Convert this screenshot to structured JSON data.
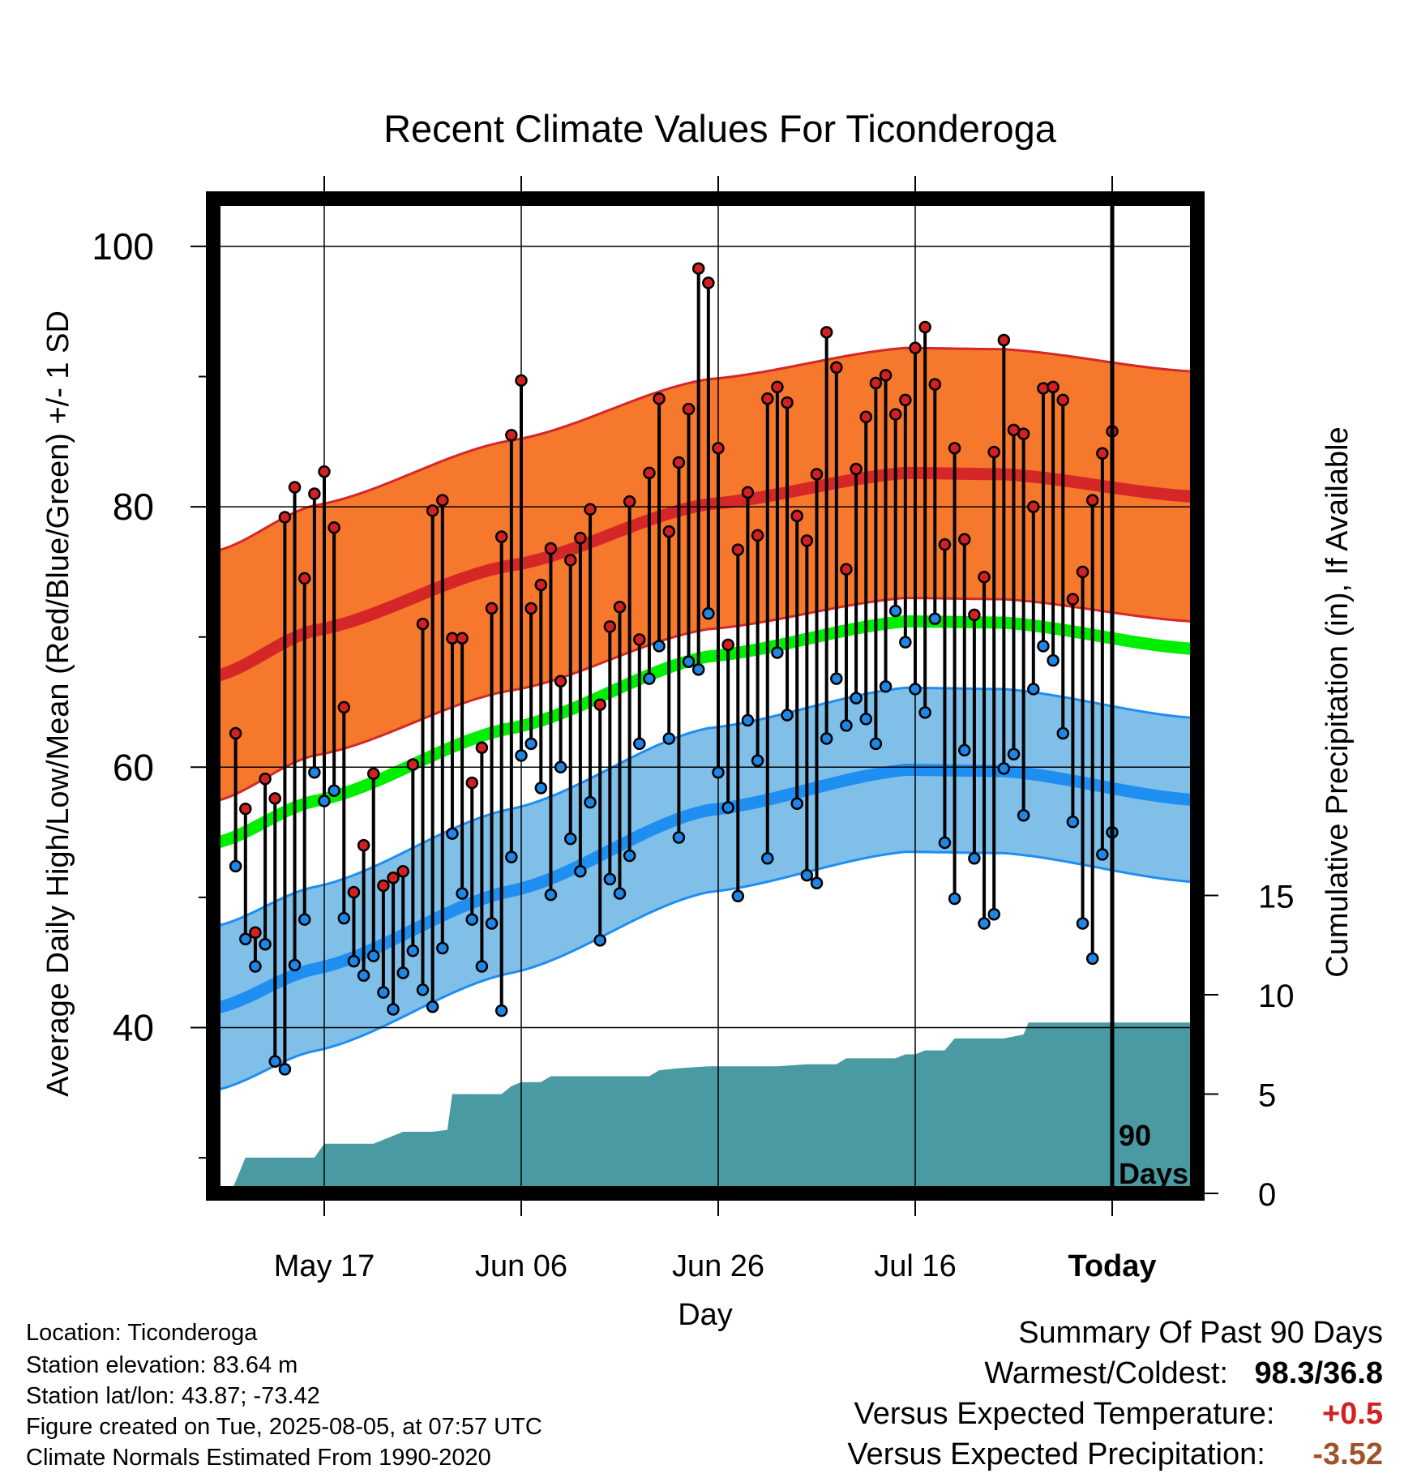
{
  "chart_data": {
    "type": "line",
    "title": "Recent Climate Values For Ticonderoga",
    "xlabel": "Day",
    "ylabel_left": "Average Daily High/Low/Mean (Red/Blue/Green) +/- 1 SD",
    "ylabel_right": "Cumulative Precipitation (in), If Available",
    "ylim_left": [
      27,
      103
    ],
    "yticks_left": [
      100,
      80,
      60,
      40
    ],
    "ylim_right": [
      0,
      20
    ],
    "yticks_right": [
      0,
      5,
      10,
      15
    ],
    "x_day_range": [
      -89,
      9
    ],
    "xticks": [
      {
        "day": -79,
        "label": "May 17"
      },
      {
        "day": -59,
        "label": "Jun 06"
      },
      {
        "day": -39,
        "label": "Jun 26"
      },
      {
        "day": -19,
        "label": "Jul 16"
      },
      {
        "day": 1,
        "label": "Today"
      }
    ],
    "today_marker_label": [
      "90",
      "Days"
    ],
    "grid": true,
    "colors": {
      "high_band": "#f5782d",
      "high_normal": "#d62728",
      "low_band": "#7fbfe8",
      "low_normal": "#1f8ef1",
      "mean_normal": "#00ee00",
      "precip_fill": "#4a9aa3",
      "high_point": "#d32020",
      "low_point": "#1f86e6",
      "warm_text": "#d32020",
      "dry_text": "#a0522d"
    },
    "normal_high": {
      "days": [
        -90,
        -80,
        -60,
        -40,
        -20,
        -10,
        9
      ],
      "mean": [
        67,
        70.5,
        75.5,
        80.2,
        82.6,
        82.5,
        80.8
      ],
      "sd": 9.6
    },
    "normal_low": {
      "days": [
        -90,
        -80,
        -60,
        -40,
        -20,
        -10,
        9
      ],
      "mean": [
        41.5,
        44.5,
        50.5,
        56.7,
        59.8,
        59.7,
        57.5
      ],
      "sd": 6.3
    },
    "normal_mean": {
      "days": [
        -90,
        -80,
        -60,
        -40,
        -20,
        -10,
        9
      ],
      "values": [
        54.2,
        57.4,
        63,
        68.5,
        71.2,
        71.1,
        69.1
      ]
    },
    "daily": {
      "start_day": -88,
      "high": [
        62.6,
        56.8,
        47.3,
        59.1,
        57.6,
        79.2,
        81.5,
        74.5,
        81,
        82.7,
        78.4,
        64.6,
        50.4,
        54,
        59.5,
        50.9,
        51.5,
        52,
        60.2,
        71,
        79.7,
        80.5,
        69.9,
        69.9,
        58.8,
        61.5,
        72.2,
        77.7,
        85.5,
        89.7,
        72.2,
        74,
        76.8,
        66.6,
        75.9,
        77.6,
        79.8,
        64.8,
        70.8,
        72.3,
        80.4,
        69.8,
        82.6,
        88.3,
        78.1,
        83.4,
        87.5,
        98.3,
        97.2,
        84.5,
        69.4,
        76.7,
        81.1,
        77.8,
        88.3,
        89.2,
        88,
        79.3,
        77.4,
        82.5,
        93.4,
        90.7,
        75.2,
        82.9,
        86.9,
        89.5,
        90.1,
        87.1,
        88.2,
        92.2,
        93.8,
        89.4,
        77.1,
        84.5,
        77.5,
        71.7,
        74.6,
        84.2,
        92.8,
        85.9,
        85.6,
        80,
        89.1,
        89.2,
        88.2,
        72.9,
        75,
        80.5,
        84.1,
        85.8
      ],
      "low": [
        52.4,
        46.8,
        44.7,
        46.4,
        37.4,
        36.8,
        44.8,
        48.3,
        59.6,
        57.4,
        58.2,
        48.4,
        45.1,
        44,
        45.5,
        42.7,
        41.4,
        44.2,
        45.9,
        42.9,
        41.6,
        46.1,
        54.9,
        50.3,
        48.3,
        44.7,
        48,
        41.3,
        53.1,
        60.9,
        61.8,
        58.4,
        50.2,
        60,
        54.5,
        52,
        57.3,
        46.7,
        51.4,
        50.3,
        53.2,
        61.8,
        66.8,
        69.3,
        62.2,
        54.6,
        68.1,
        67.5,
        71.8,
        59.6,
        56.9,
        50.1,
        63.6,
        60.5,
        53,
        68.8,
        64,
        57.2,
        51.7,
        51.1,
        62.2,
        66.8,
        63.2,
        65.3,
        63.7,
        61.8,
        66.2,
        72,
        69.6,
        66,
        64.2,
        71.4,
        54.2,
        49.9,
        61.3,
        53,
        48,
        48.7,
        59.9,
        61,
        56.3,
        66,
        69.3,
        68.2,
        62.6,
        55.8,
        48,
        45.3,
        53.3,
        55
      ]
    },
    "cumulative_precip": {
      "days": [
        -90,
        -88.5,
        -87,
        -84,
        -80,
        -79,
        -74,
        -72.5,
        -71,
        -68,
        -66.5,
        -66,
        -61,
        -60,
        -59,
        -57,
        -56,
        -53.5,
        -53,
        -46,
        -45,
        -43,
        -40,
        -36,
        -33,
        -30,
        -27,
        -26,
        -21,
        -20,
        -19,
        -18,
        -16,
        -15,
        -14,
        -10,
        -8,
        -7.5,
        -6,
        -5,
        9
      ],
      "values": [
        0,
        0,
        1.8,
        1.8,
        1.8,
        2.5,
        2.5,
        2.8,
        3.1,
        3.1,
        3.2,
        5,
        5,
        5.4,
        5.6,
        5.6,
        5.9,
        5.9,
        5.9,
        5.9,
        6.2,
        6.3,
        6.4,
        6.4,
        6.4,
        6.5,
        6.5,
        6.8,
        6.8,
        7,
        7.0,
        7.2,
        7.2,
        7.8,
        7.8,
        7.8,
        8,
        8.6,
        8.6,
        8.6,
        8.6
      ]
    }
  },
  "footer": {
    "location": "Location: Ticonderoga",
    "elevation": "Station elevation: 83.64 m",
    "latlon": "Station lat/lon: 43.87; -73.42",
    "created": "Figure created on Tue, 2025-08-05, at 07:57 UTC",
    "normals": "Climate Normals Estimated From 1990-2020"
  },
  "summary": {
    "title": "Summary Of Past 90 Days",
    "warmest_label": "Warmest/Coldest:",
    "warmest_value": "98.3/36.8",
    "temp_label": "Versus Expected Temperature:",
    "temp_value": "+0.5",
    "precip_label": "Versus Expected Precipitation:",
    "precip_value": "-3.52"
  }
}
